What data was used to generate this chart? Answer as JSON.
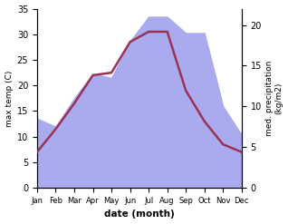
{
  "months": [
    "Jan",
    "Feb",
    "Mar",
    "Apr",
    "May",
    "Jun",
    "Jul",
    "Aug",
    "Sep",
    "Oct",
    "Nov",
    "Dec"
  ],
  "month_indices": [
    0,
    1,
    2,
    3,
    4,
    5,
    6,
    7,
    8,
    9,
    10,
    11
  ],
  "temp_max": [
    7.0,
    11.5,
    16.5,
    22.0,
    22.5,
    28.5,
    30.5,
    30.5,
    19.0,
    13.0,
    8.5,
    7.0
  ],
  "precipitation": [
    8.5,
    7.5,
    11.0,
    14.0,
    13.5,
    18.0,
    21.0,
    21.0,
    19.0,
    19.0,
    10.0,
    6.5
  ],
  "temp_color": "#993355",
  "precip_fill_color": "#aaaaee",
  "temp_ylim": [
    0,
    35
  ],
  "precip_ylim": [
    0,
    22
  ],
  "temp_yticks": [
    0,
    5,
    10,
    15,
    20,
    25,
    30,
    35
  ],
  "precip_yticks": [
    0,
    5,
    10,
    15,
    20
  ],
  "xlabel": "date (month)",
  "ylabel_left": "max temp (C)",
  "ylabel_right": "med. precipitation\n(kg/m2)",
  "figsize": [
    3.18,
    2.47
  ],
  "dpi": 100
}
